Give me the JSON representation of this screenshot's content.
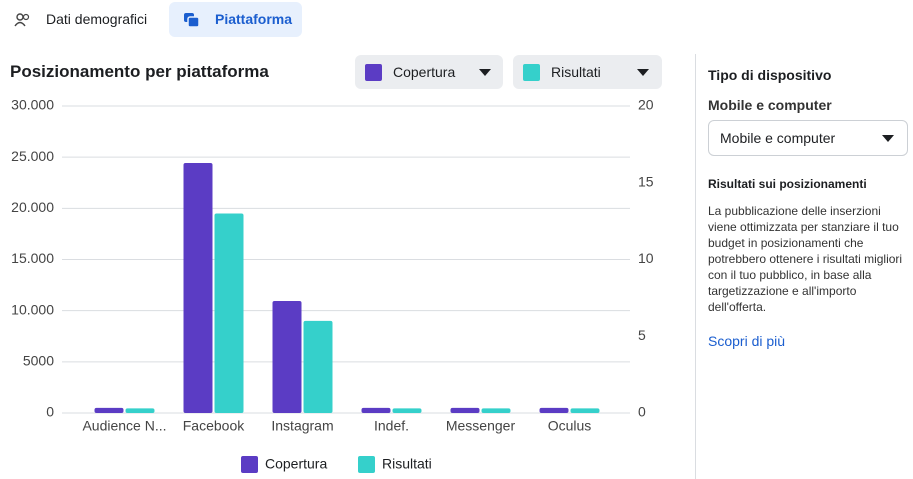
{
  "tabs": [
    "Dati demografici",
    "Piattaforma"
  ],
  "chart_data": {
    "type": "bar",
    "title": "Posizionamento per piattaforma",
    "categories": [
      "Audience N...",
      "Facebook",
      "Instagram",
      "Indef.",
      "Messenger",
      "Oculus"
    ],
    "series": [
      {
        "name": "Copertura",
        "color": "#5b3cc4",
        "values": [
          500,
          24430,
          10950,
          500,
          500,
          500
        ]
      },
      {
        "name": "Risultati",
        "color": "#35d0cb",
        "axis": "y2",
        "values": [
          0.3,
          13,
          6,
          0.3,
          0.3,
          0.3
        ]
      }
    ],
    "ylim": [
      0,
      30000
    ],
    "yticks": [
      0,
      5000,
      {
        "value": 10000,
        "label": "10.000"
      },
      {
        "value": 15000,
        "label": "15.000"
      },
      {
        "value": 20000,
        "label": "20.000"
      },
      {
        "value": 25000,
        "label": "25.000"
      },
      {
        "value": 30000,
        "label": "30.000"
      }
    ],
    "y2lim": [
      0,
      20
    ],
    "y2ticks": [
      0,
      5,
      10,
      15,
      20
    ],
    "grid": true
  },
  "sidebar": {
    "heading": "Tipo di dispositivo",
    "select_label": "Mobile e computer",
    "select_value": "Mobile e computer",
    "info_title": "Risultati sui posizionamenti",
    "info_text": "La pubblicazione delle inserzioni viene ottimizzata per stanziare il tuo budget in posizionamenti che potrebbero ottenere i risultati migliori con il tuo pubblico, in base alla targetizzazione e all'importo dell'offerta.",
    "link": "Scopri di più"
  }
}
